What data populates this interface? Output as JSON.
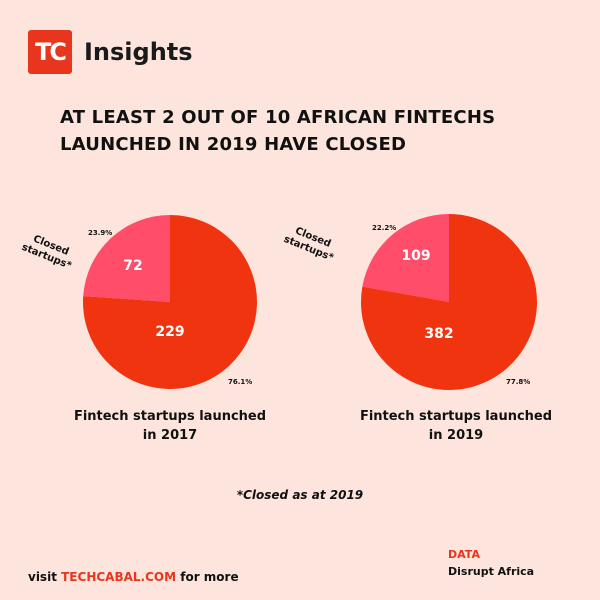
{
  "header": {
    "logo_text": "TC",
    "brand": "Insights"
  },
  "title": "AT LEAST 2 OUT OF 10 AFRICAN FINTECHS LAUNCHED IN 2019 HAVE CLOSED",
  "chart_data": [
    {
      "type": "pie",
      "caption": "Fintech startups launched in 2017",
      "slices": [
        {
          "label": "Closed startups*",
          "value": 72,
          "percent": "23.9%",
          "color": "#ff4d6a"
        },
        {
          "label": "",
          "value": 229,
          "percent": "76.1%",
          "color": "#f0340f"
        }
      ]
    },
    {
      "type": "pie",
      "caption": "Fintech startups launched in 2019",
      "slices": [
        {
          "label": "Closed startups*",
          "value": 109,
          "percent": "22.2%",
          "color": "#ff4d6a"
        },
        {
          "label": "",
          "value": 382,
          "percent": "77.8%",
          "color": "#f0340f"
        }
      ]
    }
  ],
  "footnote": "*Closed as at 2019",
  "footer": {
    "visit_prefix": "visit",
    "site": "TECHCABAL.COM",
    "visit_suffix": "for more"
  },
  "source": {
    "label": "DATA",
    "value": "Disrupt Africa"
  }
}
